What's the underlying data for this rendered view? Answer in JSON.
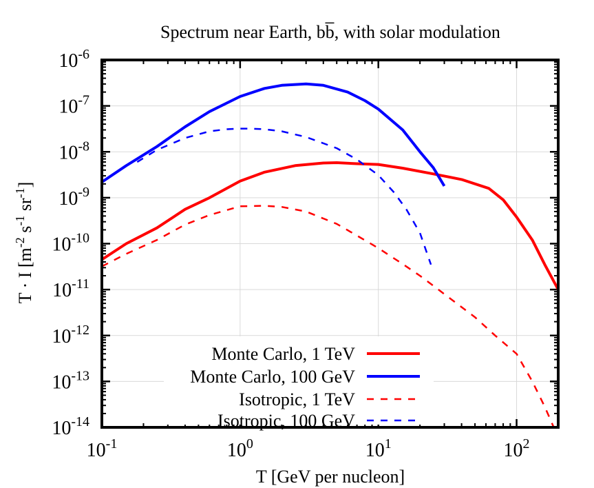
{
  "chart_data": {
    "type": "line",
    "title": "Spectrum near Earth, bb̅, with solar modulation",
    "xlabel": "T [GeV per nucleon]",
    "ylabel": "T · I [m-2 s-1 sr-1]",
    "ylabel_parts": {
      "pre": "T · I [m",
      "exp1": "-2",
      "mid1": " s",
      "exp2": "-1",
      "mid2": " sr",
      "exp3": "-1",
      "post": "]"
    },
    "xscale": "log",
    "yscale": "log",
    "xlim": [
      0.1,
      200
    ],
    "ylim": [
      1e-14,
      1e-06
    ],
    "x_ticks": [
      {
        "value": 0.1,
        "base": "10",
        "exp": "-1"
      },
      {
        "value": 1,
        "base": "10",
        "exp": "0"
      },
      {
        "value": 10,
        "base": "10",
        "exp": "1"
      },
      {
        "value": 100,
        "base": "10",
        "exp": "2"
      }
    ],
    "y_ticks": [
      {
        "value": 1e-14,
        "base": "10",
        "exp": "-14"
      },
      {
        "value": 1e-13,
        "base": "10",
        "exp": "-13"
      },
      {
        "value": 1e-12,
        "base": "10",
        "exp": "-12"
      },
      {
        "value": 1e-11,
        "base": "10",
        "exp": "-11"
      },
      {
        "value": 1e-10,
        "base": "10",
        "exp": "-10"
      },
      {
        "value": 1e-09,
        "base": "10",
        "exp": "-9"
      },
      {
        "value": 1e-08,
        "base": "10",
        "exp": "-8"
      },
      {
        "value": 1e-07,
        "base": "10",
        "exp": "-7"
      },
      {
        "value": 1e-06,
        "base": "10",
        "exp": "-6"
      }
    ],
    "grid": true,
    "legend_position": "bottom-center",
    "series": [
      {
        "name": "Monte Carlo, 1 TeV",
        "color": "#ff0000",
        "style": "solid",
        "x": [
          0.1,
          0.15,
          0.25,
          0.4,
          0.6,
          1.0,
          1.5,
          2.5,
          4.0,
          5.0,
          7.0,
          10,
          15,
          25,
          40,
          63,
          80,
          100,
          130,
          160,
          200
        ],
        "y": [
          4.5e-11,
          1e-10,
          2.2e-10,
          5.6e-10,
          1e-09,
          2.3e-09,
          3.6e-09,
          5e-09,
          5.7e-09,
          5.8e-09,
          5.5e-09,
          5.3e-09,
          4.4e-09,
          3.3e-09,
          2.5e-09,
          1.6e-09,
          9e-10,
          3.8e-10,
          1.2e-10,
          3.5e-11,
          1e-11
        ]
      },
      {
        "name": "Monte Carlo, 100 GeV",
        "color": "#0000ff",
        "style": "solid",
        "x": [
          0.1,
          0.15,
          0.25,
          0.4,
          0.6,
          1.0,
          1.5,
          2.0,
          3.0,
          4.0,
          6.0,
          8.0,
          10,
          15,
          20,
          25,
          30
        ],
        "y": [
          2.2e-09,
          5e-09,
          1.3e-08,
          3.5e-08,
          7.5e-08,
          1.6e-07,
          2.4e-07,
          2.8e-07,
          3e-07,
          2.8e-07,
          2e-07,
          1.3e-07,
          8.5e-08,
          3e-08,
          1e-08,
          4.5e-09,
          1.8e-09
        ]
      },
      {
        "name": "Isotropic, 1 TeV",
        "color": "#ff0000",
        "style": "dashed",
        "x": [
          0.1,
          0.15,
          0.25,
          0.4,
          0.6,
          1.0,
          1.5,
          2.0,
          3.0,
          5.0,
          7.0,
          10,
          15,
          20,
          30,
          50,
          70,
          100,
          130,
          160,
          200
        ],
        "y": [
          3.2e-11,
          6e-11,
          1.2e-10,
          2.6e-10,
          4.2e-10,
          6.5e-10,
          6.7e-10,
          6.3e-10,
          5e-10,
          2.7e-10,
          1.5e-10,
          8e-11,
          3.6e-11,
          2e-11,
          8e-12,
          2.5e-12,
          1e-12,
          4e-13,
          1e-13,
          2.8e-14,
          6e-15
        ]
      },
      {
        "name": "Isotropic, 100 GeV",
        "color": "#0000ff",
        "style": "dashed",
        "x": [
          0.18,
          0.25,
          0.4,
          0.6,
          0.8,
          1.0,
          1.2,
          1.5,
          2.0,
          3.0,
          5.0,
          7.0,
          10,
          13,
          16,
          20,
          24
        ],
        "y": [
          6e-09,
          1.1e-08,
          2e-08,
          2.8e-08,
          3.1e-08,
          3.2e-08,
          3.2e-08,
          3.1e-08,
          2.8e-08,
          2.1e-08,
          1.2e-08,
          6.8e-09,
          3.1e-09,
          1.3e-09,
          5.5e-10,
          1.7e-10,
          3.5e-11
        ]
      }
    ]
  }
}
